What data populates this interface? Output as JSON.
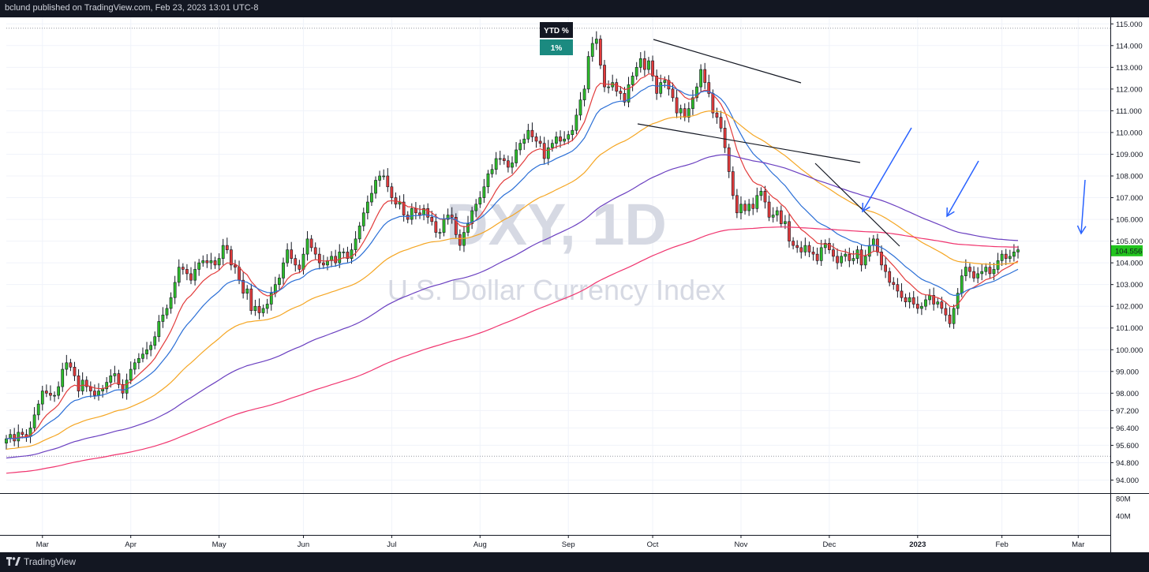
{
  "header": {
    "publisher_text": "bclund published on TradingView.com, Feb 23, 2023 13:01 UTC-8"
  },
  "footer": {
    "brand": "TradingView"
  },
  "watermark": {
    "symbol": "DXY, 1D",
    "description": "U.S. Dollar Currency Index"
  },
  "ytd_box": {
    "label": "YTD %",
    "value": "1%",
    "label_color": "#131722",
    "value_color": "#1b8a80"
  },
  "last_price": {
    "value": "104.556",
    "color": "#22c41e"
  },
  "volume_axis": {
    "ticks": [
      "80M",
      "40M"
    ]
  },
  "colors": {
    "up": "#2ebd2a",
    "down": "#e23b3b",
    "ema10": "#e23b3b",
    "ema20": "#2b6fd6",
    "ema50": "#f5a623",
    "ema100": "#6a3fc0",
    "ema200": "#f0356f",
    "trendline": "#131722",
    "arrow": "#2962ff"
  },
  "chart_data": {
    "type": "candlestick",
    "symbol": "DXY",
    "interval": "1D",
    "y_range": [
      93.4,
      115.3
    ],
    "y_ticks": [
      "115.000",
      "114.000",
      "113.000",
      "112.000",
      "111.000",
      "110.000",
      "109.000",
      "108.000",
      "107.000",
      "106.000",
      "105.000",
      "104.000",
      "103.000",
      "102.000",
      "101.000",
      "100.000",
      "99.000",
      "98.000",
      "97.200",
      "96.400",
      "95.600",
      "94.800",
      "94.000"
    ],
    "x_ticks": [
      "Mar",
      "Apr",
      "May",
      "Jun",
      "Jul",
      "Aug",
      "Sep",
      "Oct",
      "Nov",
      "Dec",
      "2023",
      "Feb",
      "Mar"
    ],
    "x_tick_values": [
      9,
      31,
      53,
      74,
      96,
      118,
      140,
      161,
      183,
      205,
      227,
      248,
      267
    ],
    "x_domain": [
      0,
      275
    ],
    "horizontal_levels": [
      114.8,
      95.1
    ],
    "closes": [
      95.9,
      96.1,
      95.8,
      96.2,
      96.1,
      96.0,
      96.4,
      97.0,
      97.5,
      98.1,
      98.0,
      97.9,
      97.9,
      98.3,
      99.1,
      99.4,
      99.2,
      98.8,
      98.1,
      98.6,
      98.3,
      98.1,
      97.9,
      98.1,
      98.2,
      98.5,
      98.8,
      98.9,
      98.4,
      98.0,
      98.6,
      99.1,
      99.4,
      99.6,
      99.8,
      100.0,
      100.2,
      100.6,
      101.3,
      101.6,
      101.9,
      102.4,
      103.1,
      103.8,
      103.7,
      103.5,
      103.2,
      103.7,
      104.0,
      104.1,
      104.0,
      104.1,
      103.9,
      104.2,
      104.8,
      104.6,
      103.9,
      103.8,
      103.2,
      102.6,
      102.8,
      101.8,
      102.0,
      101.7,
      101.9,
      102.1,
      102.6,
      103.0,
      103.3,
      104.0,
      104.6,
      104.2,
      103.9,
      103.7,
      104.4,
      105.1,
      104.7,
      104.4,
      104.0,
      103.9,
      104.1,
      104.3,
      104.0,
      104.5,
      104.5,
      104.2,
      104.6,
      105.1,
      105.7,
      106.3,
      106.8,
      107.2,
      107.8,
      108.0,
      108.0,
      107.5,
      107.0,
      106.7,
      106.8,
      106.2,
      106.0,
      106.5,
      106.3,
      106.2,
      106.5,
      106.1,
      105.9,
      105.4,
      105.4,
      106.0,
      106.2,
      106.1,
      105.3,
      104.8,
      105.4,
      105.8,
      106.4,
      106.7,
      107.0,
      107.5,
      108.1,
      108.3,
      108.8,
      108.8,
      108.7,
      108.4,
      108.6,
      109.2,
      109.5,
      109.7,
      110.1,
      109.8,
      109.6,
      109.5,
      108.8,
      109.3,
      109.5,
      109.8,
      109.6,
      109.7,
      109.9,
      110.1,
      110.8,
      111.5,
      112.0,
      113.5,
      114.1,
      114.3,
      113.1,
      112.1,
      112.1,
      112.3,
      111.9,
      111.8,
      111.4,
      112.2,
      112.6,
      113.0,
      113.4,
      112.9,
      113.3,
      112.6,
      111.8,
      112.3,
      112.4,
      112.0,
      111.6,
      110.9,
      111.1,
      110.7,
      111.1,
      111.6,
      112.1,
      112.9,
      112.3,
      111.8,
      110.9,
      110.7,
      110.2,
      109.3,
      108.2,
      107.1,
      106.3,
      106.7,
      106.4,
      106.7,
      106.5,
      107.1,
      107.3,
      106.8,
      106.1,
      106.2,
      106.4,
      105.8,
      105.9,
      105.0,
      104.8,
      104.7,
      104.5,
      104.8,
      104.5,
      104.4,
      104.1,
      104.7,
      104.9,
      104.6,
      104.3,
      104.0,
      104.3,
      104.4,
      104.1,
      104.2,
      104.6,
      103.9,
      104.3,
      104.8,
      105.1,
      104.5,
      103.9,
      103.6,
      103.1,
      103.0,
      102.7,
      102.4,
      102.2,
      102.4,
      102.1,
      101.9,
      102.0,
      102.3,
      102.5,
      102.1,
      102.2,
      101.9,
      101.6,
      101.2,
      101.9,
      102.6,
      103.4,
      103.8,
      103.6,
      103.3,
      103.5,
      103.6,
      103.8,
      103.5,
      103.7,
      104.1,
      104.4,
      104.2,
      104.3,
      104.5,
      104.6
    ]
  }
}
